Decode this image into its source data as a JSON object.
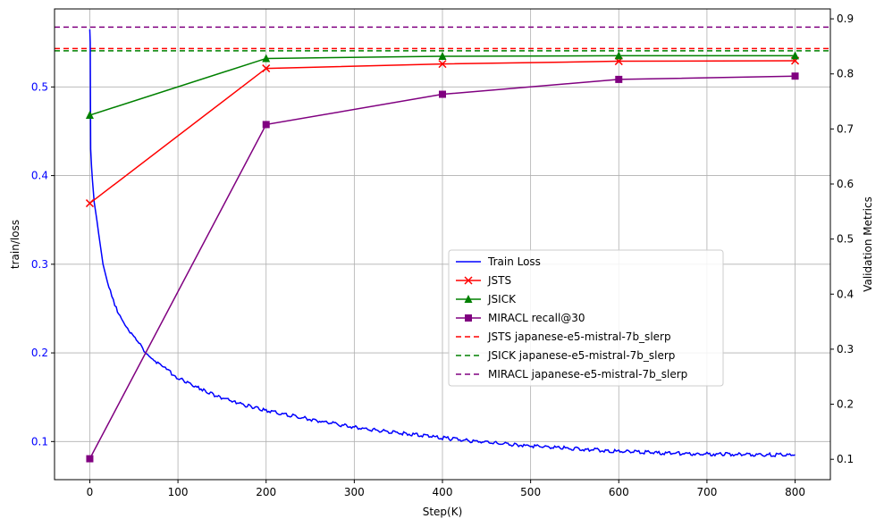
{
  "chart_data": {
    "type": "line",
    "xlabel": "Step(K)",
    "ylabel_left": "train/loss",
    "ylabel_right": "Validation Metrics",
    "xlim": [
      -40,
      840
    ],
    "ylim_left": [
      0.057,
      0.588
    ],
    "ylim_right": [
      0.063,
      0.918
    ],
    "x_ticks": [
      0,
      100,
      200,
      300,
      400,
      500,
      600,
      700,
      800
    ],
    "y_left_ticks": [
      0.1,
      0.2,
      0.3,
      0.4,
      0.5
    ],
    "y_right_ticks": [
      0.1,
      0.2,
      0.3,
      0.4,
      0.5,
      0.6,
      0.7,
      0.8,
      0.9
    ],
    "grid": true,
    "legend_position": "center-right",
    "train_loss": {
      "name": "Train Loss",
      "color": "#0000ff",
      "axis": "left",
      "x": [
        0,
        0.5,
        1,
        2,
        3,
        5,
        8,
        10,
        15,
        20,
        25,
        30,
        40,
        50,
        60,
        70,
        80,
        90,
        100,
        120,
        140,
        160,
        180,
        200,
        250,
        300,
        350,
        400,
        450,
        500,
        550,
        600,
        650,
        700,
        750,
        800
      ],
      "y": [
        0.565,
        0.55,
        0.43,
        0.41,
        0.395,
        0.37,
        0.35,
        0.335,
        0.3,
        0.28,
        0.265,
        0.25,
        0.232,
        0.218,
        0.205,
        0.195,
        0.186,
        0.179,
        0.172,
        0.162,
        0.153,
        0.146,
        0.14,
        0.135,
        0.125,
        0.116,
        0.11,
        0.104,
        0.099,
        0.095,
        0.092,
        0.089,
        0.087,
        0.086,
        0.085,
        0.085
      ]
    },
    "series": [
      {
        "name": "JSTS",
        "color": "#ff0000",
        "marker": "x",
        "axis": "right",
        "x": [
          0,
          200,
          400,
          600,
          800
        ],
        "y": [
          0.565,
          0.81,
          0.818,
          0.823,
          0.824
        ]
      },
      {
        "name": "JSICK",
        "color": "#008000",
        "marker": "triangle",
        "axis": "right",
        "x": [
          0,
          200,
          400,
          600,
          800
        ],
        "y": [
          0.725,
          0.828,
          0.832,
          0.833,
          0.833
        ]
      },
      {
        "name": "MIRACL recall@30",
        "color": "#800080",
        "marker": "square",
        "axis": "right",
        "x": [
          0,
          200,
          400,
          600,
          800
        ],
        "y": [
          0.101,
          0.708,
          0.763,
          0.79,
          0.796
        ]
      }
    ],
    "reference_lines": [
      {
        "name": "JSTS japanese-e5-mistral-7b_slerp",
        "color": "#ff0000",
        "axis": "right",
        "y": 0.846
      },
      {
        "name": "JSICK japanese-e5-mistral-7b_slerp",
        "color": "#008000",
        "axis": "right",
        "y": 0.842
      },
      {
        "name": "MIRACL japanese-e5-mistral-7b_slerp",
        "color": "#800080",
        "axis": "right",
        "y": 0.885
      }
    ]
  }
}
